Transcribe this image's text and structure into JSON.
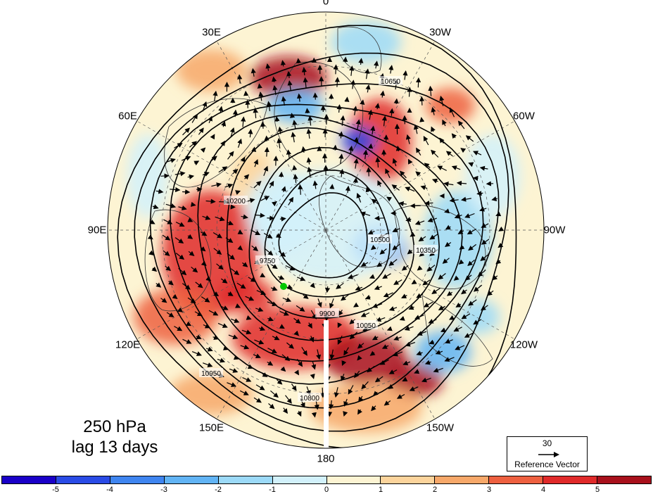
{
  "title": {
    "level": "250 hPa",
    "lag": "lag 13 days"
  },
  "longitude_labels": [
    {
      "text": "0",
      "lon": 0
    },
    {
      "text": "30W",
      "lon": -30
    },
    {
      "text": "60W",
      "lon": -60
    },
    {
      "text": "90W",
      "lon": -90
    },
    {
      "text": "120W",
      "lon": -120
    },
    {
      "text": "150W",
      "lon": -150
    },
    {
      "text": "180",
      "lon": 180
    },
    {
      "text": "150E",
      "lon": 150
    },
    {
      "text": "120E",
      "lon": 120
    },
    {
      "text": "90E",
      "lon": 90
    },
    {
      "text": "60E",
      "lon": 60
    },
    {
      "text": "30E",
      "lon": 30
    }
  ],
  "contours": {
    "labels": [
      "10950",
      "10800",
      "10650",
      "10500",
      "10350",
      "10200",
      "10050",
      "9900",
      "9750"
    ]
  },
  "reference_vector": {
    "magnitude": "30",
    "caption": "Reference Vector"
  },
  "colorbar": {
    "colors": [
      "#1a00c8",
      "#2a4be6",
      "#3f85f0",
      "#62b4f5",
      "#9cdaf8",
      "#d2f1fb",
      "#fdf4d3",
      "#fcd49c",
      "#f7a86a",
      "#ee6040",
      "#e02a2a",
      "#a8101c"
    ],
    "labels": [
      "-5",
      "-4",
      "-3",
      "-2",
      "-1",
      "0",
      "1",
      "2",
      "3",
      "4",
      "5"
    ]
  },
  "colors": {
    "land_outline": "#333333",
    "contour": "#000000",
    "marker": "#00c800"
  }
}
